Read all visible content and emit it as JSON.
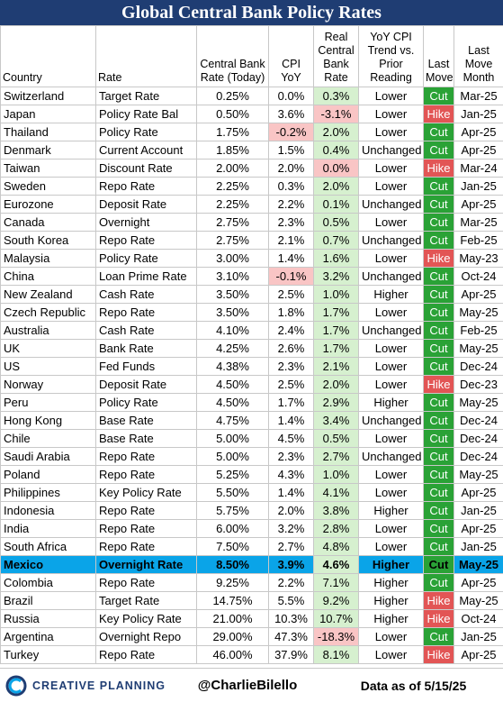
{
  "title": "Global Central Bank Policy Rates",
  "headers": {
    "country": "Country",
    "rate": "Rate",
    "cb_rate": [
      "Central Bank",
      "Rate (Today)"
    ],
    "cpi": [
      "CPI",
      "YoY"
    ],
    "real": [
      "Real",
      "Central",
      "Bank",
      "Rate"
    ],
    "trend": [
      "YoY CPI",
      "Trend vs.",
      "Prior",
      "Reading"
    ],
    "last_move": [
      "Last",
      "Move"
    ],
    "last_move_month": [
      "Last",
      "Move",
      "Month"
    ]
  },
  "colors": {
    "title_bg": "#1f3d73",
    "cut": "#2aa236",
    "hike": "#e25555",
    "positive_real": "#d6f0cf",
    "negative_real": "#f9c5c5",
    "highlight_row": "#0aa4e8"
  },
  "rows": [
    {
      "country": "Switzerland",
      "rate": "Target Rate",
      "cb_rate": "0.25%",
      "cpi": "0.0%",
      "real": "0.3%",
      "trend": "Lower",
      "move": "Cut",
      "month": "Mar-25"
    },
    {
      "country": "Japan",
      "rate": "Policy Rate Bal",
      "cb_rate": "0.50%",
      "cpi": "3.6%",
      "real": "-3.1%",
      "trend": "Lower",
      "move": "Hike",
      "month": "Jan-25"
    },
    {
      "country": "Thailand",
      "rate": "Policy Rate",
      "cb_rate": "1.75%",
      "cpi": "-0.2%",
      "real": "2.0%",
      "trend": "Lower",
      "move": "Cut",
      "month": "Apr-25"
    },
    {
      "country": "Denmark",
      "rate": "Current Account",
      "cb_rate": "1.85%",
      "cpi": "1.5%",
      "real": "0.4%",
      "trend": "Unchanged",
      "move": "Cut",
      "month": "Apr-25"
    },
    {
      "country": "Taiwan",
      "rate": "Discount Rate",
      "cb_rate": "2.00%",
      "cpi": "2.0%",
      "real": "0.0%",
      "trend": "Lower",
      "move": "Hike",
      "month": "Mar-24"
    },
    {
      "country": "Sweden",
      "rate": "Repo Rate",
      "cb_rate": "2.25%",
      "cpi": "0.3%",
      "real": "2.0%",
      "trend": "Lower",
      "move": "Cut",
      "month": "Jan-25"
    },
    {
      "country": "Eurozone",
      "rate": "Deposit Rate",
      "cb_rate": "2.25%",
      "cpi": "2.2%",
      "real": "0.1%",
      "trend": "Unchanged",
      "move": "Cut",
      "month": "Apr-25"
    },
    {
      "country": "Canada",
      "rate": "Overnight",
      "cb_rate": "2.75%",
      "cpi": "2.3%",
      "real": "0.5%",
      "trend": "Lower",
      "move": "Cut",
      "month": "Mar-25"
    },
    {
      "country": "South Korea",
      "rate": "Repo Rate",
      "cb_rate": "2.75%",
      "cpi": "2.1%",
      "real": "0.7%",
      "trend": "Unchanged",
      "move": "Cut",
      "month": "Feb-25"
    },
    {
      "country": "Malaysia",
      "rate": "Policy Rate",
      "cb_rate": "3.00%",
      "cpi": "1.4%",
      "real": "1.6%",
      "trend": "Lower",
      "move": "Hike",
      "month": "May-23"
    },
    {
      "country": "China",
      "rate": "Loan Prime Rate",
      "cb_rate": "3.10%",
      "cpi": "-0.1%",
      "real": "3.2%",
      "trend": "Unchanged",
      "move": "Cut",
      "month": "Oct-24"
    },
    {
      "country": "New Zealand",
      "rate": "Cash Rate",
      "cb_rate": "3.50%",
      "cpi": "2.5%",
      "real": "1.0%",
      "trend": "Higher",
      "move": "Cut",
      "month": "Apr-25"
    },
    {
      "country": "Czech Republic",
      "rate": "Repo Rate",
      "cb_rate": "3.50%",
      "cpi": "1.8%",
      "real": "1.7%",
      "trend": "Lower",
      "move": "Cut",
      "month": "May-25"
    },
    {
      "country": "Australia",
      "rate": "Cash Rate",
      "cb_rate": "4.10%",
      "cpi": "2.4%",
      "real": "1.7%",
      "trend": "Unchanged",
      "move": "Cut",
      "month": "Feb-25"
    },
    {
      "country": "UK",
      "rate": "Bank Rate",
      "cb_rate": "4.25%",
      "cpi": "2.6%",
      "real": "1.7%",
      "trend": "Lower",
      "move": "Cut",
      "month": "May-25"
    },
    {
      "country": "US",
      "rate": "Fed Funds",
      "cb_rate": "4.38%",
      "cpi": "2.3%",
      "real": "2.1%",
      "trend": "Lower",
      "move": "Cut",
      "month": "Dec-24"
    },
    {
      "country": "Norway",
      "rate": "Deposit Rate",
      "cb_rate": "4.50%",
      "cpi": "2.5%",
      "real": "2.0%",
      "trend": "Lower",
      "move": "Hike",
      "month": "Dec-23"
    },
    {
      "country": "Peru",
      "rate": "Policy Rate",
      "cb_rate": "4.50%",
      "cpi": "1.7%",
      "real": "2.9%",
      "trend": "Higher",
      "move": "Cut",
      "month": "May-25"
    },
    {
      "country": "Hong Kong",
      "rate": "Base Rate",
      "cb_rate": "4.75%",
      "cpi": "1.4%",
      "real": "3.4%",
      "trend": "Unchanged",
      "move": "Cut",
      "month": "Dec-24"
    },
    {
      "country": "Chile",
      "rate": "Base Rate",
      "cb_rate": "5.00%",
      "cpi": "4.5%",
      "real": "0.5%",
      "trend": "Lower",
      "move": "Cut",
      "month": "Dec-24"
    },
    {
      "country": "Saudi Arabia",
      "rate": "Repo Rate",
      "cb_rate": "5.00%",
      "cpi": "2.3%",
      "real": "2.7%",
      "trend": "Unchanged",
      "move": "Cut",
      "month": "Dec-24"
    },
    {
      "country": "Poland",
      "rate": "Repo Rate",
      "cb_rate": "5.25%",
      "cpi": "4.3%",
      "real": "1.0%",
      "trend": "Lower",
      "move": "Cut",
      "month": "May-25"
    },
    {
      "country": "Philippines",
      "rate": "Key Policy Rate",
      "cb_rate": "5.50%",
      "cpi": "1.4%",
      "real": "4.1%",
      "trend": "Lower",
      "move": "Cut",
      "month": "Apr-25"
    },
    {
      "country": "Indonesia",
      "rate": "Repo Rate",
      "cb_rate": "5.75%",
      "cpi": "2.0%",
      "real": "3.8%",
      "trend": "Higher",
      "move": "Cut",
      "month": "Jan-25"
    },
    {
      "country": "India",
      "rate": "Repo Rate",
      "cb_rate": "6.00%",
      "cpi": "3.2%",
      "real": "2.8%",
      "trend": "Lower",
      "move": "Cut",
      "month": "Apr-25"
    },
    {
      "country": "South Africa",
      "rate": "Repo Rate",
      "cb_rate": "7.50%",
      "cpi": "2.7%",
      "real": "4.8%",
      "trend": "Lower",
      "move": "Cut",
      "month": "Jan-25"
    },
    {
      "country": "Mexico",
      "rate": "Overnight Rate",
      "cb_rate": "8.50%",
      "cpi": "3.9%",
      "real": "4.6%",
      "trend": "Higher",
      "move": "Cut",
      "month": "May-25",
      "highlight": true
    },
    {
      "country": "Colombia",
      "rate": "Repo Rate",
      "cb_rate": "9.25%",
      "cpi": "2.2%",
      "real": "7.1%",
      "trend": "Higher",
      "move": "Cut",
      "month": "Apr-25"
    },
    {
      "country": "Brazil",
      "rate": "Target Rate",
      "cb_rate": "14.75%",
      "cpi": "5.5%",
      "real": "9.2%",
      "trend": "Higher",
      "move": "Hike",
      "month": "May-25"
    },
    {
      "country": "Russia",
      "rate": "Key Policy Rate",
      "cb_rate": "21.00%",
      "cpi": "10.3%",
      "real": "10.7%",
      "trend": "Higher",
      "move": "Hike",
      "month": "Oct-24"
    },
    {
      "country": "Argentina",
      "rate": "Overnight Repo",
      "cb_rate": "29.00%",
      "cpi": "47.3%",
      "real": "-18.3%",
      "trend": "Lower",
      "move": "Cut",
      "month": "Jan-25"
    },
    {
      "country": "Turkey",
      "rate": "Repo Rate",
      "cb_rate": "46.00%",
      "cpi": "37.9%",
      "real": "8.1%",
      "trend": "Lower",
      "move": "Hike",
      "month": "Apr-25"
    }
  ],
  "footer": {
    "logo_text": "CREATIVE PLANNING",
    "logo_icon": "creative-planning-logo-icon",
    "handle": "@CharlieBilello",
    "as_of": "Data as of 5/15/25"
  }
}
